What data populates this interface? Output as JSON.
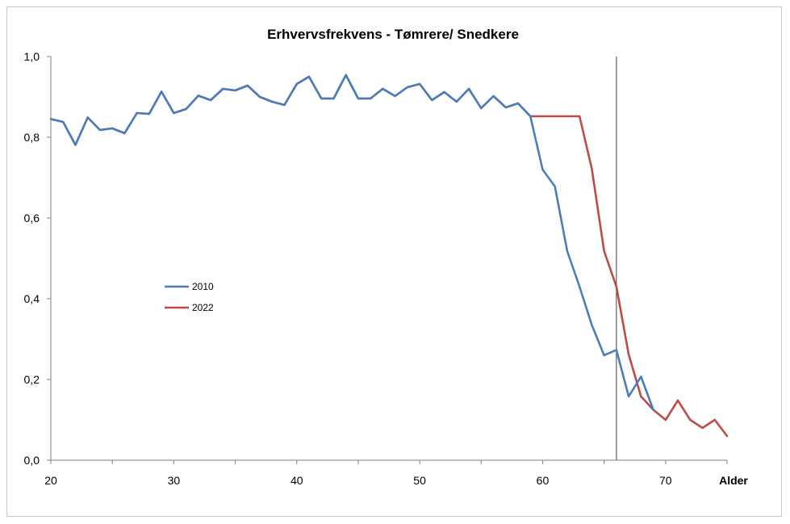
{
  "chart_data": {
    "type": "line",
    "title": "Erhvervsfrekvens - Tømrere/ Snedkere",
    "xlabel": "Alder",
    "ylabel": "",
    "xlim": [
      20,
      75
    ],
    "ylim": [
      0,
      1
    ],
    "x_ticks": [
      20,
      30,
      40,
      50,
      60,
      70
    ],
    "x_tick_labels": [
      "20",
      "30",
      "40",
      "50",
      "60",
      "70"
    ],
    "y_ticks": [
      0,
      0.2,
      0.4,
      0.6,
      0.8,
      1.0
    ],
    "y_tick_labels": [
      "0,0",
      "0,2",
      "0,4",
      "0,6",
      "0,8",
      "1,0"
    ],
    "reference_line_x": 66,
    "grid": false,
    "legend_position": "center-left",
    "x": [
      20,
      21,
      22,
      23,
      24,
      25,
      26,
      27,
      28,
      29,
      30,
      31,
      32,
      33,
      34,
      35,
      36,
      37,
      38,
      39,
      40,
      41,
      42,
      43,
      44,
      45,
      46,
      47,
      48,
      49,
      50,
      51,
      52,
      53,
      54,
      55,
      56,
      57,
      58,
      59,
      60,
      61,
      62,
      63,
      64,
      65,
      66,
      67,
      68,
      69,
      70,
      71,
      72,
      73,
      74,
      75
    ],
    "series": [
      {
        "name": "2010",
        "color": "#4a7ebb",
        "values": [
          0.845,
          0.838,
          0.781,
          0.849,
          0.818,
          0.822,
          0.81,
          0.86,
          0.858,
          0.913,
          0.86,
          0.87,
          0.903,
          0.892,
          0.92,
          0.916,
          0.928,
          0.9,
          0.888,
          0.88,
          0.932,
          0.95,
          0.896,
          0.896,
          0.954,
          0.896,
          0.896,
          0.92,
          0.902,
          0.924,
          0.932,
          0.892,
          0.912,
          0.888,
          0.92,
          0.872,
          0.902,
          0.874,
          0.884,
          0.852,
          0.72,
          0.678,
          0.518,
          0.43,
          0.335,
          0.26,
          0.273,
          0.158,
          0.207,
          0.125,
          null,
          null,
          null,
          null,
          null,
          null
        ]
      },
      {
        "name": "2022",
        "color": "#be4b48",
        "values": [
          0.845,
          0.838,
          0.781,
          0.849,
          0.818,
          0.822,
          0.81,
          0.86,
          0.858,
          0.913,
          0.86,
          0.87,
          0.903,
          0.892,
          0.92,
          0.916,
          0.928,
          0.9,
          0.888,
          0.88,
          0.932,
          0.95,
          0.896,
          0.896,
          0.954,
          0.896,
          0.896,
          0.92,
          0.902,
          0.924,
          0.932,
          0.892,
          0.912,
          0.888,
          0.92,
          0.872,
          0.902,
          0.874,
          0.884,
          0.852,
          0.852,
          0.852,
          0.852,
          0.852,
          0.722,
          0.518,
          0.43,
          0.262,
          0.158,
          0.125,
          0.1,
          0.148,
          0.1,
          0.08,
          0.1,
          0.06
        ]
      }
    ]
  }
}
